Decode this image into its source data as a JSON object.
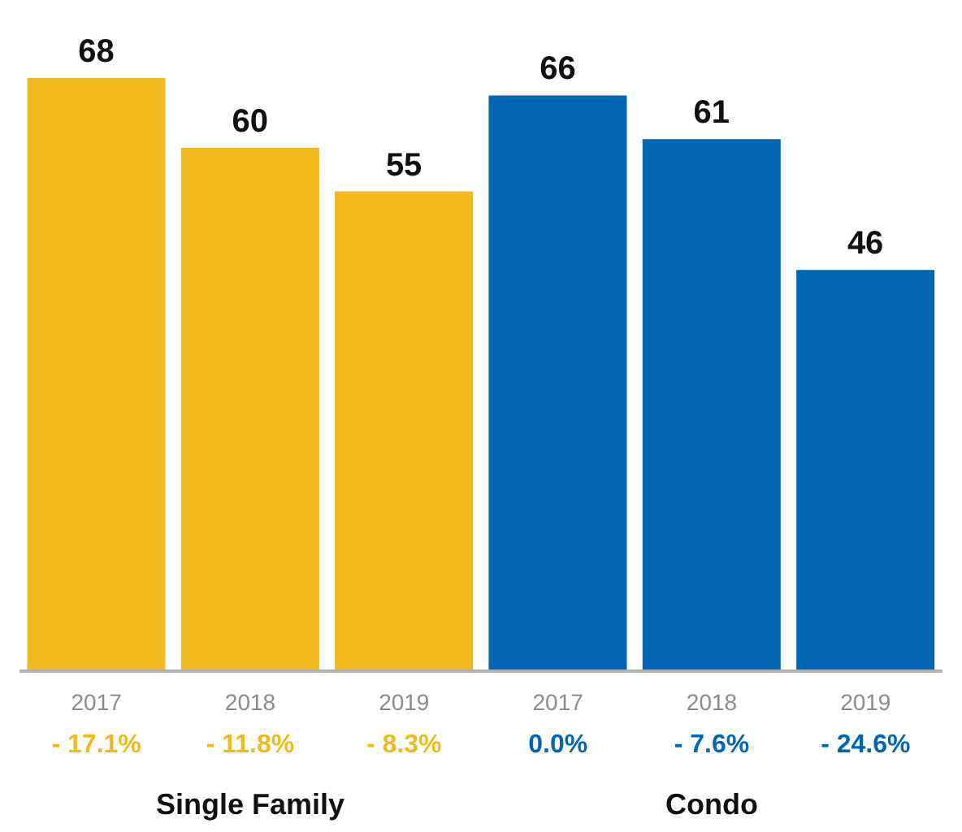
{
  "chart_data": {
    "type": "bar",
    "categories": [
      "2017",
      "2018",
      "2019",
      "2017",
      "2018",
      "2019"
    ],
    "values": [
      68,
      60,
      55,
      66,
      61,
      46
    ],
    "colors": [
      "#f2b91e",
      "#f2b91e",
      "#f2b91e",
      "#0066b3",
      "#0066b3",
      "#0066b3"
    ],
    "data_labels": true,
    "annotations": [
      "- 17.1%",
      "- 11.8%",
      "- 8.3%",
      "0.0%",
      "- 7.6%",
      "- 24.6%",
      "Single Family",
      "Condo"
    ]
  }
}
